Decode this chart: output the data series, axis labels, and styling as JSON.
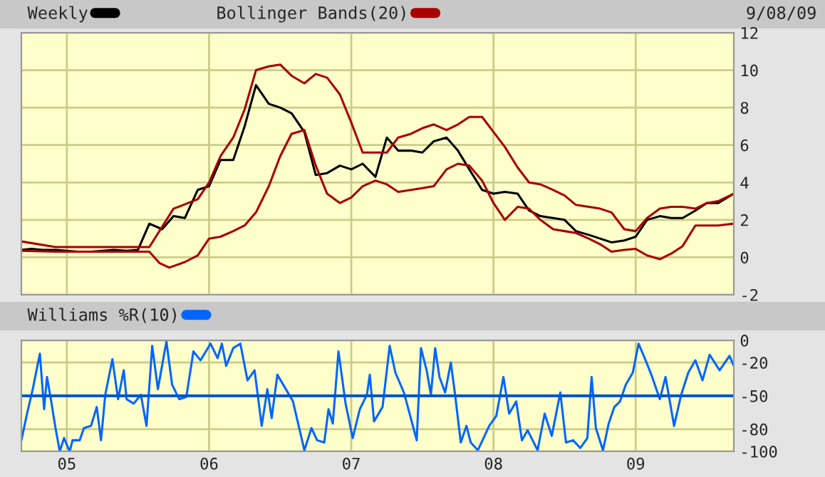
{
  "chart_data": [
    {
      "type": "line",
      "annotations": [
        "9/08/09"
      ],
      "legend": "top left",
      "grid": true,
      "tick_labels": "y",
      "xlim": [
        2004.68,
        2009.69
      ],
      "xticks": [
        {
          "value": 2005,
          "label": null
        },
        {
          "value": 2006,
          "label": null
        },
        {
          "value": 2007,
          "label": null
        },
        {
          "value": 2008,
          "label": null
        },
        {
          "value": 2009,
          "label": null
        }
      ],
      "ylim": [
        -2,
        12
      ],
      "yticks": [
        -2,
        0,
        2,
        4,
        6,
        8,
        10,
        12
      ],
      "series": [
        {
          "name": "Weekly",
          "color": "#000000",
          "x": [
            2004.68,
            2004.75,
            2004.83,
            2004.92,
            2005.0,
            2005.08,
            2005.17,
            2005.25,
            2005.33,
            2005.42,
            2005.5,
            2005.58,
            2005.67,
            2005.75,
            2005.83,
            2005.92,
            2006.0,
            2006.08,
            2006.17,
            2006.25,
            2006.33,
            2006.42,
            2006.5,
            2006.58,
            2006.67,
            2006.75,
            2006.83,
            2006.92,
            2007.0,
            2007.08,
            2007.17,
            2007.25,
            2007.33,
            2007.42,
            2007.5,
            2007.58,
            2007.67,
            2007.75,
            2007.83,
            2007.92,
            2008.0,
            2008.08,
            2008.17,
            2008.25,
            2008.33,
            2008.42,
            2008.5,
            2008.58,
            2008.67,
            2008.75,
            2008.83,
            2008.92,
            2009.0,
            2009.08,
            2009.17,
            2009.25,
            2009.33,
            2009.42,
            2009.5,
            2009.58,
            2009.69
          ],
          "values": [
            0.4,
            0.45,
            0.4,
            0.4,
            0.35,
            0.3,
            0.3,
            0.35,
            0.4,
            0.35,
            0.4,
            1.8,
            1.5,
            2.2,
            2.1,
            3.6,
            3.8,
            5.2,
            5.2,
            7.0,
            9.2,
            8.2,
            8.0,
            7.7,
            6.7,
            4.4,
            4.5,
            4.9,
            4.7,
            5.0,
            4.3,
            6.4,
            5.7,
            5.7,
            5.6,
            6.2,
            6.4,
            5.7,
            4.7,
            3.6,
            3.4,
            3.5,
            3.4,
            2.5,
            2.2,
            2.1,
            2.0,
            1.4,
            1.2,
            1.0,
            0.8,
            0.9,
            1.1,
            2.0,
            2.2,
            2.1,
            2.1,
            2.5,
            2.9,
            2.9,
            3.4
          ]
        },
        {
          "name": "Bollinger Bands(20)",
          "color": "#aa0000",
          "x": [
            2004.68,
            2004.92,
            2005.58,
            2005.75,
            2005.92,
            2006.0,
            2006.08,
            2006.17,
            2006.25,
            2006.33,
            2006.42,
            2006.5,
            2006.58,
            2006.67,
            2006.75,
            2006.83,
            2006.92,
            2007.0,
            2007.08,
            2007.17,
            2007.25,
            2007.33,
            2007.42,
            2007.5,
            2007.58,
            2007.67,
            2007.75,
            2007.83,
            2007.92,
            2008.0,
            2008.08,
            2008.17,
            2008.25,
            2008.33,
            2008.42,
            2008.5,
            2008.58,
            2008.67,
            2008.75,
            2008.83,
            2008.92,
            2009.0,
            2009.08,
            2009.17,
            2009.25,
            2009.33,
            2009.42,
            2009.5,
            2009.58,
            2009.69
          ],
          "values": [
            0.85,
            0.55,
            0.55,
            2.6,
            3.1,
            4.0,
            5.4,
            6.4,
            7.9,
            10.0,
            10.2,
            10.3,
            9.7,
            9.3,
            9.8,
            9.6,
            8.7,
            7.2,
            5.6,
            5.6,
            5.6,
            6.4,
            6.6,
            6.9,
            7.1,
            6.8,
            7.1,
            7.5,
            7.5,
            6.7,
            5.9,
            4.8,
            4.0,
            3.9,
            3.6,
            3.3,
            2.8,
            2.7,
            2.6,
            2.4,
            1.5,
            1.4,
            2.1,
            2.6,
            2.7,
            2.7,
            2.6,
            2.9,
            3.0,
            3.4
          ]
        },
        {
          "color": "#aa0000",
          "x": [
            2004.68,
            2004.92,
            2005.58,
            2005.65,
            2005.72,
            2005.83,
            2005.92,
            2006.0,
            2006.08,
            2006.17,
            2006.25,
            2006.33,
            2006.42,
            2006.5,
            2006.58,
            2006.67,
            2006.75,
            2006.83,
            2006.92,
            2007.0,
            2007.08,
            2007.17,
            2007.25,
            2007.33,
            2007.42,
            2007.5,
            2007.58,
            2007.67,
            2007.75,
            2007.83,
            2007.92,
            2008.0,
            2008.08,
            2008.17,
            2008.25,
            2008.33,
            2008.42,
            2008.5,
            2008.58,
            2008.67,
            2008.75,
            2008.83,
            2008.92,
            2009.0,
            2009.08,
            2009.17,
            2009.25,
            2009.33,
            2009.42,
            2009.5,
            2009.58,
            2009.69
          ],
          "values": [
            0.35,
            0.3,
            0.3,
            -0.3,
            -0.55,
            -0.25,
            0.1,
            1.0,
            1.1,
            1.4,
            1.7,
            2.4,
            3.8,
            5.4,
            6.6,
            6.8,
            4.9,
            3.4,
            2.9,
            3.2,
            3.8,
            4.1,
            3.9,
            3.5,
            3.6,
            3.7,
            3.8,
            4.7,
            5.0,
            4.9,
            4.1,
            2.9,
            2.0,
            2.7,
            2.6,
            2.0,
            1.5,
            1.4,
            1.3,
            1.0,
            0.7,
            0.3,
            0.4,
            0.45,
            0.1,
            -0.1,
            0.2,
            0.6,
            1.7,
            1.7,
            1.7,
            1.8
          ]
        }
      ]
    },
    {
      "type": "line",
      "legend": "top left",
      "grid": true,
      "xlim": [
        2004.68,
        2009.69
      ],
      "xticks": [
        {
          "value": 2005,
          "label": "05"
        },
        {
          "value": 2006,
          "label": "06"
        },
        {
          "value": 2007,
          "label": "07"
        },
        {
          "value": 2008,
          "label": "08"
        },
        {
          "value": 2009,
          "label": "09"
        }
      ],
      "ylim": [
        -100,
        0
      ],
      "yticks": [
        -100,
        -80,
        -50,
        -20,
        0
      ],
      "ref_lines": [
        {
          "axis": "y",
          "value": -50,
          "color": "#0055cc"
        }
      ],
      "series": [
        {
          "name": "Williams %R(10)",
          "color": "#0066ff",
          "x": [
            2004.68,
            2004.72,
            2004.76,
            2004.81,
            2004.84,
            2004.86,
            2004.89,
            2004.92,
            2004.95,
            2004.98,
            2005.02,
            2005.04,
            2005.09,
            2005.12,
            2005.17,
            2005.21,
            2005.24,
            2005.27,
            2005.32,
            2005.36,
            2005.4,
            2005.42,
            2005.47,
            2005.52,
            2005.56,
            2005.6,
            2005.64,
            2005.7,
            2005.74,
            2005.79,
            2005.84,
            2005.89,
            2005.94,
            2006.01,
            2006.06,
            2006.09,
            2006.12,
            2006.17,
            2006.22,
            2006.27,
            2006.32,
            2006.37,
            2006.41,
            2006.44,
            2006.48,
            2006.54,
            2006.59,
            2006.67,
            2006.72,
            2006.76,
            2006.81,
            2006.84,
            2006.87,
            2006.91,
            2006.96,
            2007.01,
            2007.06,
            2007.11,
            2007.13,
            2007.16,
            2007.22,
            2007.27,
            2007.31,
            2007.37,
            2007.41,
            2007.46,
            2007.49,
            2007.53,
            2007.56,
            2007.59,
            2007.62,
            2007.66,
            2007.7,
            2007.73,
            2007.77,
            2007.81,
            2007.84,
            2007.89,
            2007.93,
            2007.97,
            2008.02,
            2008.07,
            2008.11,
            2008.16,
            2008.2,
            2008.24,
            2008.31,
            2008.36,
            2008.41,
            2008.47,
            2008.51,
            2008.56,
            2008.61,
            2008.66,
            2008.69,
            2008.72,
            2008.77,
            2008.81,
            2008.85,
            2008.89,
            2008.93,
            2008.98,
            2009.02,
            2009.07,
            2009.11,
            2009.17,
            2009.21,
            2009.27,
            2009.32,
            2009.37,
            2009.42,
            2009.47,
            2009.52,
            2009.59,
            2009.66,
            2009.69
          ],
          "values": [
            -90,
            -66,
            -44,
            -12,
            -62,
            -33,
            -55,
            -79,
            -100,
            -88,
            -100,
            -90,
            -90,
            -79,
            -77,
            -60,
            -90,
            -49,
            -17,
            -53,
            -27,
            -53,
            -57,
            -49,
            -77,
            -5,
            -44,
            -1,
            -40,
            -53,
            -51,
            -10,
            -18,
            -3,
            -16,
            -3,
            -23,
            -7,
            -3,
            -36,
            -27,
            -77,
            -44,
            -70,
            -31,
            -44,
            -55,
            -99,
            -79,
            -90,
            -92,
            -62,
            -75,
            -10,
            -57,
            -88,
            -62,
            -49,
            -31,
            -73,
            -60,
            -5,
            -29,
            -47,
            -66,
            -90,
            -7,
            -27,
            -49,
            -7,
            -33,
            -47,
            -20,
            -49,
            -92,
            -77,
            -92,
            -99,
            -88,
            -77,
            -68,
            -33,
            -66,
            -55,
            -90,
            -81,
            -99,
            -66,
            -86,
            -47,
            -92,
            -90,
            -97,
            -88,
            -33,
            -79,
            -99,
            -75,
            -60,
            -55,
            -40,
            -29,
            -3,
            -18,
            -31,
            -53,
            -33,
            -77,
            -49,
            -29,
            -18,
            -36,
            -13,
            -27,
            -14,
            -23
          ]
        }
      ]
    }
  ]
}
